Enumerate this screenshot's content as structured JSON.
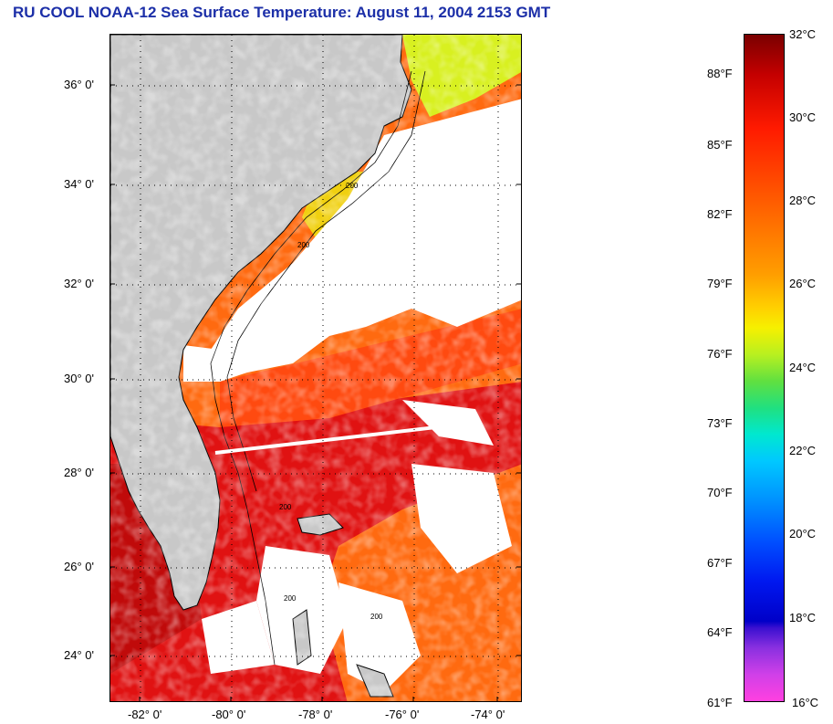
{
  "title": "RU COOL  NOAA-12  Sea Surface Temperature:  August 11, 2004 2153 GMT",
  "map": {
    "lat_labels": [
      "36° 0'",
      "34° 0'",
      "32° 0'",
      "30° 0'",
      "28° 0'",
      "26° 0'",
      "24° 0'"
    ],
    "lon_labels": [
      "-82° 0'",
      "-80° 0'",
      "-78° 0'",
      "-76° 0'",
      "-74° 0'"
    ],
    "contour_labels": [
      "200",
      "200",
      "200",
      "200",
      "200"
    ],
    "colors": {
      "land": "#c8c8c8",
      "cloud": "#ffffff",
      "warm_water": "#e01010",
      "gulf_stream": "#c80a0a",
      "open_ocean": "#ff6a10"
    }
  },
  "colorbar": {
    "fahrenheit": [
      "88°F",
      "85°F",
      "82°F",
      "79°F",
      "76°F",
      "73°F",
      "70°F",
      "67°F",
      "64°F",
      "61°F"
    ],
    "celsius": [
      "32°C",
      "30°C",
      "28°C",
      "26°C",
      "24°C",
      "22°C",
      "20°C",
      "18°C",
      "16°C"
    ]
  }
}
